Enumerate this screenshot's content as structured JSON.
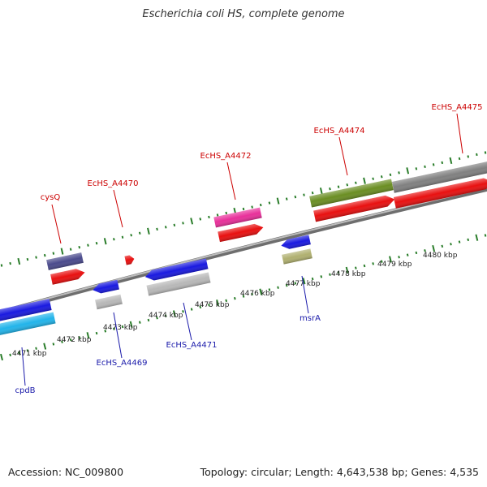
{
  "title": "Escherichia coli HS, complete genome",
  "footer": {
    "accession": "Accession: NC_009800",
    "summary": "Topology: circular; Length: 4,643,538 bp; Genes: 4,535"
  },
  "colors": {
    "top_label": "#cc0000",
    "bottom_label": "#1a1aaa",
    "tick": "#2a7d2a",
    "backbone": "#888888"
  },
  "tick_labels": [
    "4471 kbp",
    "4472 kbp",
    "4473 kbp",
    "4474 kbp",
    "4475 kbp",
    "4476 kbp",
    "4477 kbp",
    "4478 kbp",
    "4479 kbp",
    "4480 kbp"
  ],
  "gene_labels": [
    {
      "name": "cysQ",
      "strand": "top"
    },
    {
      "name": "EcHS_A4470",
      "strand": "top"
    },
    {
      "name": "EcHS_A4472",
      "strand": "top"
    },
    {
      "name": "EcHS_A4474",
      "strand": "top"
    },
    {
      "name": "EcHS_A4475",
      "strand": "top"
    },
    {
      "name": "cpdB",
      "strand": "bottom"
    },
    {
      "name": "EcHS_A4469",
      "strand": "bottom"
    },
    {
      "name": "EcHS_A4471",
      "strand": "bottom"
    },
    {
      "name": "msrA",
      "strand": "bottom"
    }
  ],
  "features": [
    {
      "id": "cysQ-cog",
      "color": "#4a4a8c"
    },
    {
      "id": "cysQ-cds",
      "color": "#e81010"
    },
    {
      "id": "A4470-cds",
      "color": "#e81010"
    },
    {
      "id": "A4472-cog",
      "color": "#e8309a"
    },
    {
      "id": "A4472-cds",
      "color": "#e81010"
    },
    {
      "id": "A4474-cog",
      "color": "#6b8e23"
    },
    {
      "id": "A4474-cds",
      "color": "#e81010"
    },
    {
      "id": "A4475-cog",
      "color": "#808080"
    },
    {
      "id": "A4475-cds",
      "color": "#e81010"
    },
    {
      "id": "cpdB-cds",
      "color": "#1a1ae0"
    },
    {
      "id": "cpdB-cog",
      "color": "#22b4ea"
    },
    {
      "id": "A4469-cds",
      "color": "#1a1ae0"
    },
    {
      "id": "A4469-cog",
      "color": "#b8b8b8"
    },
    {
      "id": "A4471-cds",
      "color": "#1a1ae0"
    },
    {
      "id": "A4471-cog",
      "color": "#b8b8b8"
    },
    {
      "id": "msrA-cds",
      "color": "#1a1ae0"
    },
    {
      "id": "msrA-cog",
      "color": "#b0b070"
    }
  ]
}
